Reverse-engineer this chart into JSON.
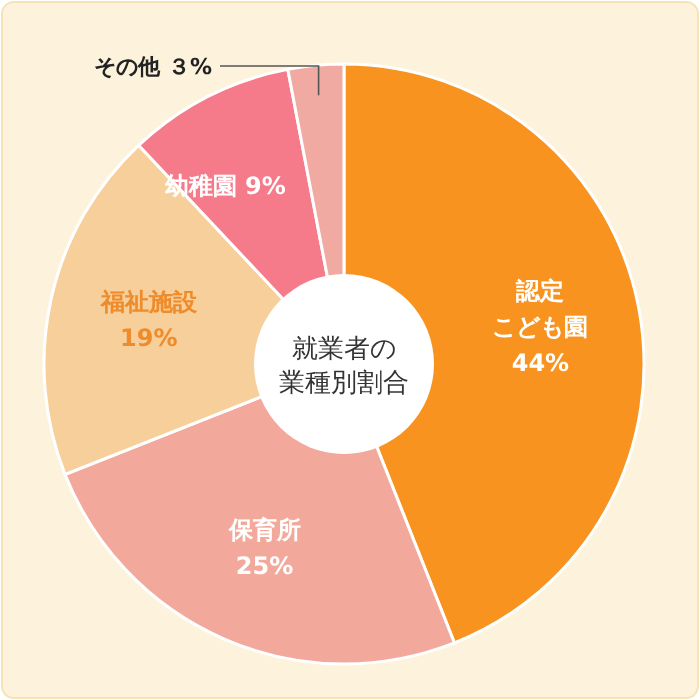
{
  "chart_data": {
    "type": "donut",
    "title": "就業者の業種別割合",
    "categories": [
      "認定こども園",
      "保育所",
      "福祉施設",
      "幼稚園",
      "その他"
    ],
    "values": [
      44,
      25,
      19,
      9,
      3
    ],
    "colors": [
      "#f7931e",
      "#f2a99c",
      "#f6cf9b",
      "#f57b8b",
      "#f0aaa2"
    ],
    "value_labels": [
      "44%",
      "25%",
      "19%",
      "9%",
      "３%"
    ]
  }
}
